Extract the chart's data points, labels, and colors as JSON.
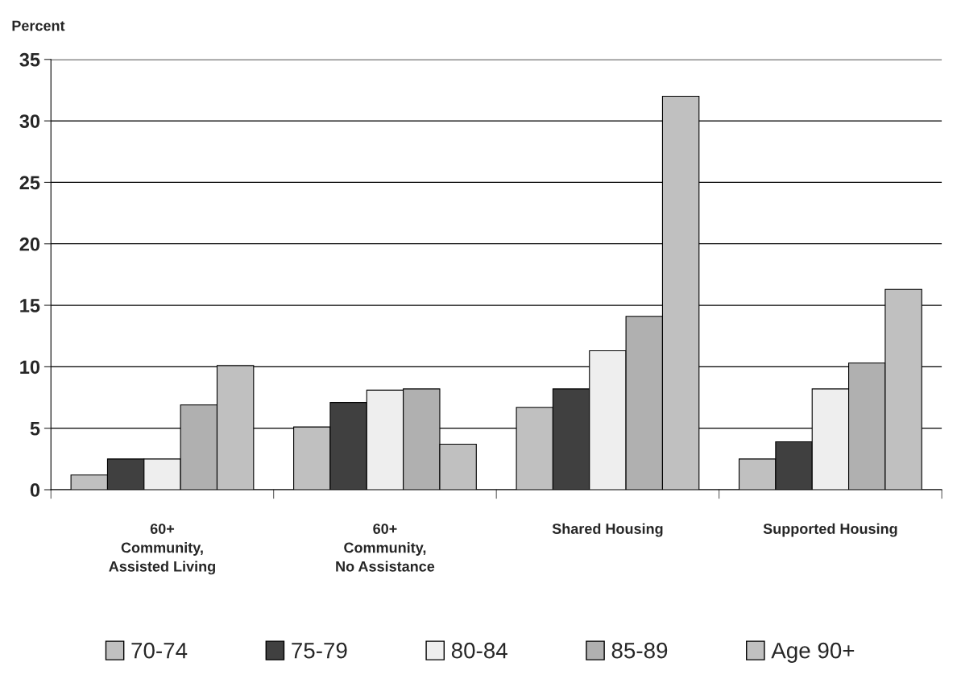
{
  "chart_data": {
    "type": "bar",
    "ylabel": "Percent",
    "categories": [
      "60+\nCommunity,\nAssisted Living",
      "60+\nCommunity,\nNo Assistance",
      "Shared Housing",
      "Supported Housing"
    ],
    "series": [
      {
        "name": "70-74",
        "color": "#c0c0c0",
        "values": [
          1.2,
          5.1,
          6.7,
          2.5
        ]
      },
      {
        "name": "75-79",
        "color": "#404040",
        "values": [
          2.5,
          7.1,
          8.2,
          3.9
        ]
      },
      {
        "name": "80-84",
        "color": "#eeeeee",
        "values": [
          2.5,
          8.1,
          11.3,
          8.2
        ]
      },
      {
        "name": "85-89",
        "color": "#b0b0b0",
        "values": [
          6.9,
          8.2,
          14.1,
          10.3
        ]
      },
      {
        "name": "Age 90+",
        "color": "#c0c0c0",
        "values": [
          10.1,
          3.7,
          32.0,
          16.3
        ]
      }
    ],
    "ylim": [
      0,
      35
    ],
    "yticks": [
      0,
      5,
      10,
      15,
      20,
      25,
      30,
      35
    ],
    "grid": "y",
    "legend": "bottom"
  }
}
